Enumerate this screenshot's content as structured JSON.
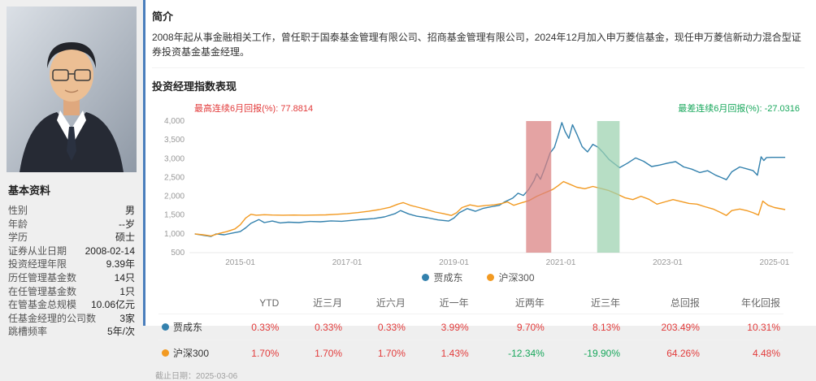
{
  "colors": {
    "panel_accent_blue": "#4a7ebc",
    "positive_red": "#e23b3b",
    "negative_green": "#17a75b",
    "series_blue": "#3381ad",
    "series_orange": "#f29a22",
    "band_red": "#d98080",
    "band_green": "#9bd1af"
  },
  "profile": {
    "basic_info_title": "基本资料",
    "fields": [
      {
        "label": "性别",
        "value": "男"
      },
      {
        "label": "年龄",
        "value": "--岁"
      },
      {
        "label": "学历",
        "value": "硕士"
      },
      {
        "label": "证券从业日期",
        "value": "2008-02-14"
      },
      {
        "label": "投资经理年限",
        "value": "9.39年"
      },
      {
        "label": "历任管理基金数",
        "value": "14只"
      },
      {
        "label": "在任管理基金数",
        "value": "1只"
      },
      {
        "label": "在管基金总规模",
        "value": "10.06亿元"
      },
      {
        "label": "任基金经理的公司数",
        "value": "3家"
      },
      {
        "label": "跳槽频率",
        "value": "5年/次"
      }
    ]
  },
  "intro": {
    "title": "简介",
    "text": "2008年起从事金融相关工作，曾任职于国泰基金管理有限公司、招商基金管理有限公司，2024年12月加入申万菱信基金，现任申万菱信新动力混合型证券投资基金基金经理。"
  },
  "performance": {
    "title": "投资经理指数表现",
    "best_label": "最高连续6月回报(%): ",
    "best_value": "77.8814",
    "worst_label": "最差连续6月回报(%): ",
    "worst_value": "-27.0316",
    "as_of": "截止日期：2025-03-06"
  },
  "chart_data": {
    "type": "line",
    "title": "投资经理指数表现",
    "xlabel": "",
    "ylabel": "",
    "grid": false,
    "legend_position": "bottom",
    "xlim": [
      2014.05,
      2025.35
    ],
    "ylim": [
      500,
      4000
    ],
    "yticks": [
      {
        "v": 500,
        "label": "500"
      },
      {
        "v": 1000,
        "label": "1,000"
      },
      {
        "v": 1500,
        "label": "1,500"
      },
      {
        "v": 2000,
        "label": "2,000"
      },
      {
        "v": 2500,
        "label": "2,500"
      },
      {
        "v": 3000,
        "label": "3,000"
      },
      {
        "v": 3500,
        "label": "3,500"
      },
      {
        "v": 4000,
        "label": "4,000"
      }
    ],
    "xticks": [
      {
        "v": 2015.0,
        "label": "2015-01"
      },
      {
        "v": 2017.0,
        "label": "2017-01"
      },
      {
        "v": 2019.0,
        "label": "2019-01"
      },
      {
        "v": 2021.0,
        "label": "2021-01"
      },
      {
        "v": 2023.0,
        "label": "2023-01"
      },
      {
        "v": 2025.0,
        "label": "2025-01"
      }
    ],
    "bands": [
      {
        "x0": 2020.35,
        "x1": 2020.82,
        "color": "#d98080",
        "meaning": "best-consecutive-6-month-period"
      },
      {
        "x0": 2021.68,
        "x1": 2022.1,
        "color": "#9bd1af",
        "meaning": "worst-consecutive-6-month-period"
      }
    ],
    "series": [
      {
        "name": "贾成东",
        "color": "#3381ad",
        "points": [
          [
            2014.15,
            1000
          ],
          [
            2014.3,
            965
          ],
          [
            2014.45,
            930
          ],
          [
            2014.55,
            1000
          ],
          [
            2014.7,
            975
          ],
          [
            2014.85,
            1020
          ],
          [
            2015.0,
            1060
          ],
          [
            2015.1,
            1160
          ],
          [
            2015.2,
            1280
          ],
          [
            2015.35,
            1380
          ],
          [
            2015.45,
            1300
          ],
          [
            2015.6,
            1340
          ],
          [
            2015.75,
            1290
          ],
          [
            2015.9,
            1310
          ],
          [
            2016.1,
            1300
          ],
          [
            2016.3,
            1330
          ],
          [
            2016.5,
            1320
          ],
          [
            2016.7,
            1345
          ],
          [
            2016.9,
            1335
          ],
          [
            2017.1,
            1360
          ],
          [
            2017.3,
            1385
          ],
          [
            2017.5,
            1405
          ],
          [
            2017.7,
            1450
          ],
          [
            2017.9,
            1540
          ],
          [
            2018.0,
            1620
          ],
          [
            2018.15,
            1530
          ],
          [
            2018.3,
            1470
          ],
          [
            2018.5,
            1430
          ],
          [
            2018.7,
            1370
          ],
          [
            2018.9,
            1340
          ],
          [
            2019.0,
            1420
          ],
          [
            2019.1,
            1560
          ],
          [
            2019.25,
            1670
          ],
          [
            2019.4,
            1600
          ],
          [
            2019.55,
            1680
          ],
          [
            2019.7,
            1720
          ],
          [
            2019.85,
            1760
          ],
          [
            2019.95,
            1850
          ],
          [
            2020.1,
            1950
          ],
          [
            2020.2,
            2080
          ],
          [
            2020.3,
            2020
          ],
          [
            2020.4,
            2180
          ],
          [
            2020.5,
            2420
          ],
          [
            2020.55,
            2600
          ],
          [
            2020.62,
            2450
          ],
          [
            2020.7,
            2750
          ],
          [
            2020.8,
            3150
          ],
          [
            2020.88,
            3300
          ],
          [
            2020.95,
            3620
          ],
          [
            2021.02,
            3960
          ],
          [
            2021.08,
            3720
          ],
          [
            2021.15,
            3540
          ],
          [
            2021.22,
            3900
          ],
          [
            2021.3,
            3650
          ],
          [
            2021.4,
            3320
          ],
          [
            2021.5,
            3180
          ],
          [
            2021.6,
            3380
          ],
          [
            2021.7,
            3300
          ],
          [
            2021.8,
            3150
          ],
          [
            2021.9,
            2980
          ],
          [
            2022.0,
            2870
          ],
          [
            2022.1,
            2760
          ],
          [
            2022.25,
            2880
          ],
          [
            2022.4,
            3020
          ],
          [
            2022.55,
            2930
          ],
          [
            2022.7,
            2790
          ],
          [
            2022.85,
            2830
          ],
          [
            2023.0,
            2880
          ],
          [
            2023.15,
            2920
          ],
          [
            2023.3,
            2780
          ],
          [
            2023.45,
            2720
          ],
          [
            2023.6,
            2630
          ],
          [
            2023.75,
            2680
          ],
          [
            2023.9,
            2560
          ],
          [
            2024.0,
            2500
          ],
          [
            2024.1,
            2440
          ],
          [
            2024.2,
            2650
          ],
          [
            2024.35,
            2780
          ],
          [
            2024.5,
            2720
          ],
          [
            2024.6,
            2680
          ],
          [
            2024.68,
            2560
          ],
          [
            2024.75,
            3050
          ],
          [
            2024.8,
            2950
          ],
          [
            2024.85,
            3030
          ],
          [
            2024.95,
            3035
          ],
          [
            2025.2,
            3035
          ]
        ]
      },
      {
        "name": "沪深300",
        "color": "#f29a22",
        "points": [
          [
            2014.15,
            1000
          ],
          [
            2014.3,
            975
          ],
          [
            2014.45,
            945
          ],
          [
            2014.6,
            1010
          ],
          [
            2014.75,
            1060
          ],
          [
            2014.9,
            1130
          ],
          [
            2015.0,
            1240
          ],
          [
            2015.1,
            1420
          ],
          [
            2015.2,
            1520
          ],
          [
            2015.3,
            1495
          ],
          [
            2015.45,
            1510
          ],
          [
            2015.6,
            1500
          ],
          [
            2015.8,
            1495
          ],
          [
            2016.0,
            1500
          ],
          [
            2016.2,
            1495
          ],
          [
            2016.4,
            1500
          ],
          [
            2016.6,
            1505
          ],
          [
            2016.8,
            1520
          ],
          [
            2017.0,
            1540
          ],
          [
            2017.2,
            1565
          ],
          [
            2017.4,
            1600
          ],
          [
            2017.6,
            1645
          ],
          [
            2017.8,
            1705
          ],
          [
            2017.95,
            1790
          ],
          [
            2018.05,
            1830
          ],
          [
            2018.2,
            1750
          ],
          [
            2018.35,
            1700
          ],
          [
            2018.5,
            1640
          ],
          [
            2018.65,
            1580
          ],
          [
            2018.8,
            1540
          ],
          [
            2018.95,
            1490
          ],
          [
            2019.05,
            1560
          ],
          [
            2019.15,
            1700
          ],
          [
            2019.3,
            1770
          ],
          [
            2019.45,
            1730
          ],
          [
            2019.6,
            1755
          ],
          [
            2019.75,
            1770
          ],
          [
            2019.9,
            1810
          ],
          [
            2020.0,
            1850
          ],
          [
            2020.12,
            1760
          ],
          [
            2020.25,
            1820
          ],
          [
            2020.4,
            1880
          ],
          [
            2020.55,
            2000
          ],
          [
            2020.7,
            2090
          ],
          [
            2020.85,
            2180
          ],
          [
            2020.95,
            2280
          ],
          [
            2021.05,
            2390
          ],
          [
            2021.15,
            2330
          ],
          [
            2021.3,
            2240
          ],
          [
            2021.45,
            2200
          ],
          [
            2021.6,
            2260
          ],
          [
            2021.75,
            2210
          ],
          [
            2021.9,
            2150
          ],
          [
            2022.05,
            2060
          ],
          [
            2022.2,
            1960
          ],
          [
            2022.35,
            1910
          ],
          [
            2022.5,
            2000
          ],
          [
            2022.65,
            1920
          ],
          [
            2022.8,
            1790
          ],
          [
            2022.95,
            1850
          ],
          [
            2023.1,
            1910
          ],
          [
            2023.25,
            1860
          ],
          [
            2023.4,
            1810
          ],
          [
            2023.55,
            1790
          ],
          [
            2023.7,
            1720
          ],
          [
            2023.85,
            1660
          ],
          [
            2024.0,
            1560
          ],
          [
            2024.1,
            1490
          ],
          [
            2024.2,
            1620
          ],
          [
            2024.35,
            1660
          ],
          [
            2024.5,
            1610
          ],
          [
            2024.6,
            1560
          ],
          [
            2024.7,
            1500
          ],
          [
            2024.78,
            1870
          ],
          [
            2024.88,
            1760
          ],
          [
            2025.0,
            1700
          ],
          [
            2025.2,
            1645
          ]
        ]
      }
    ]
  },
  "table": {
    "headers": [
      "YTD",
      "近三月",
      "近六月",
      "近一年",
      "近两年",
      "近三年",
      "总回报",
      "年化回报"
    ],
    "rows": [
      {
        "name": "贾成东",
        "color": "#3381ad",
        "values": [
          "0.33%",
          "0.33%",
          "0.33%",
          "3.99%",
          "9.70%",
          "8.13%",
          "203.49%",
          "10.31%"
        ]
      },
      {
        "name": "沪深300",
        "color": "#f29a22",
        "values": [
          "1.70%",
          "1.70%",
          "1.70%",
          "1.43%",
          "-12.34%",
          "-19.90%",
          "64.26%",
          "4.48%"
        ]
      }
    ]
  }
}
